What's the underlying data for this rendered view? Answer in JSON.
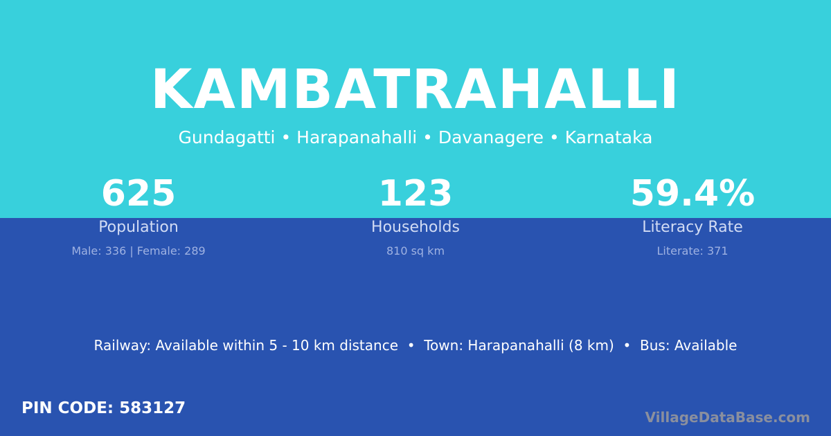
{
  "colors": {
    "top_background": "#38D0DC",
    "bottom_background": "#2953B0"
  },
  "village_name": "KAMBATRAHALLI",
  "location_line": "Gundagatti • Harapanahalli • Davanagere • Karnataka",
  "stats": [
    {
      "value": "625",
      "label": "Population",
      "detail": "Male: 336 | Female: 289"
    },
    {
      "value": "123",
      "label": "Households",
      "detail": "810 sq km"
    },
    {
      "value": "59.4%",
      "label": "Literacy Rate",
      "detail": "Literate: 371"
    }
  ],
  "amenities_line": "Railway: Available within 5 - 10 km distance  •  Town: Harapanahalli (8 km)  •  Bus: Available",
  "pin_code": "PIN CODE: 583127",
  "watermark": "VillageDataBase.com"
}
